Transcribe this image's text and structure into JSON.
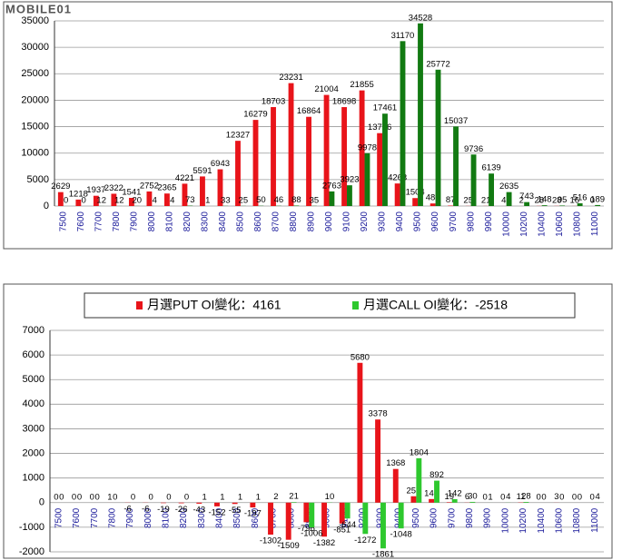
{
  "logo": "MOBILE01",
  "chart_data": [
    {
      "type": "bar",
      "categories": [
        "7500",
        "7600",
        "7700",
        "7800",
        "7900",
        "8000",
        "8100",
        "8200",
        "8300",
        "8400",
        "8500",
        "8600",
        "8700",
        "8800",
        "8900",
        "9000",
        "9100",
        "9200",
        "9300",
        "9400",
        "9500",
        "9600",
        "9700",
        "9800",
        "9900",
        "10000",
        "10200",
        "10400",
        "10600",
        "10800",
        "11000"
      ],
      "series": [
        {
          "color": "#e8141a",
          "values": [
            2629,
            1218,
            1937,
            2322,
            1541,
            2752,
            2365,
            4221,
            5591,
            6943,
            12327,
            16279,
            18703,
            23231,
            16864,
            21004,
            18698,
            21855,
            13776,
            4263,
            1504,
            486,
            87,
            25,
            21,
            4,
            2,
            28,
            28,
            16,
            0
          ]
        },
        {
          "color": "#127a12",
          "values": [
            0,
            0,
            12,
            12,
            20,
            4,
            4,
            73,
            1,
            33,
            25,
            50,
            46,
            88,
            35,
            2763,
            3923,
            9978,
            17461,
            31170,
            34528,
            25772,
            15037,
            9736,
            6139,
            2635,
            743,
            148,
            95,
            516,
            189
          ]
        }
      ],
      "ylim": [
        0,
        35000
      ],
      "yticks": [
        0,
        5000,
        10000,
        15000,
        20000,
        25000,
        30000,
        35000
      ],
      "grid": true
    },
    {
      "type": "bar",
      "categories": [
        "7500",
        "7600",
        "7700",
        "7800",
        "7900",
        "8000",
        "8100",
        "8200",
        "8300",
        "8400",
        "8500",
        "8600",
        "8700",
        "8800",
        "8900",
        "9000",
        "9100",
        "9200",
        "9300",
        "9400",
        "9500",
        "9600",
        "9700",
        "9800",
        "9900",
        "10000",
        "10200",
        "10400",
        "10600",
        "10800",
        "11000"
      ],
      "series": [
        {
          "name": "月選PUT OI變化：4161",
          "color": "#e8141a",
          "values": [
            0,
            0,
            0,
            1,
            -6,
            -6,
            -19,
            -26,
            -43,
            -152,
            -55,
            -197,
            -1302,
            -1509,
            -796,
            -1382,
            -851,
            5680,
            3378,
            1368,
            259,
            146,
            19,
            6,
            0,
            0,
            11,
            0,
            3,
            0,
            0
          ]
        },
        {
          "name": "月選CALL OI變化：-2518",
          "color": "#2ec82e",
          "values": [
            0,
            0,
            0,
            0,
            0,
            0,
            0,
            0,
            1,
            1,
            1,
            1,
            2,
            21,
            -1006,
            10,
            -644,
            -1272,
            -1861,
            -1048,
            1804,
            892,
            142,
            30,
            1,
            4,
            28,
            0,
            0,
            0,
            4
          ]
        }
      ],
      "ylim": [
        -2000,
        7000
      ],
      "yticks": [
        -2000,
        -1000,
        0,
        1000,
        2000,
        3000,
        4000,
        5000,
        6000,
        7000
      ],
      "grid": true,
      "legend": "top"
    }
  ]
}
